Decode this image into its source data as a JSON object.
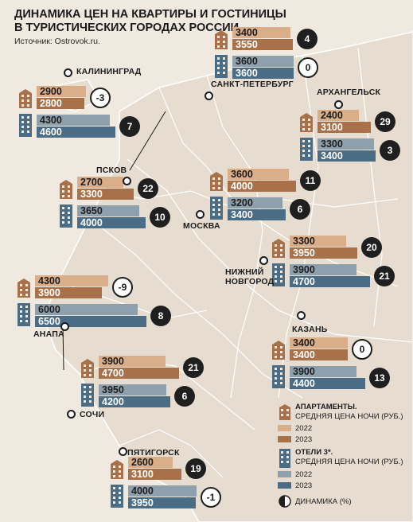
{
  "title_line1": "ДИНАМИКА ЦЕН НА КВАРТИРЫ И ГОСТИНИЦЫ",
  "title_line2": "В ТУРИСТИЧЕСКИХ ГОРОДАХ РОССИИ",
  "source": "Источник: Ostrovok.ru.",
  "colors": {
    "apt_2022": "#d9ae88",
    "apt_2023": "#a8714a",
    "hotel_2022": "#8fa0ad",
    "hotel_2023": "#4a6d85",
    "map_bg": "#efe9df",
    "land": "#e6dccf",
    "border": "#ffffff"
  },
  "chart_data": {
    "type": "bar",
    "cities": [
      {
        "name": "САНКТ-ПЕТЕРБУРГ",
        "apt": [
          3400,
          3550
        ],
        "apt_change": "4",
        "hotel": [
          3600,
          3600
        ],
        "hotel_change": "0"
      },
      {
        "name": "КАЛИНИНГРАД",
        "apt": [
          2900,
          2800
        ],
        "apt_change": "-3",
        "hotel": [
          4300,
          4600
        ],
        "hotel_change": "7"
      },
      {
        "name": "АРХАНГЕЛЬСК",
        "apt": [
          2400,
          3100
        ],
        "apt_change": "29",
        "hotel": [
          3300,
          3400
        ],
        "hotel_change": "3"
      },
      {
        "name": "ПСКОВ",
        "apt": [
          2700,
          3300
        ],
        "apt_change": "22",
        "hotel": [
          3650,
          4000
        ],
        "hotel_change": "10"
      },
      {
        "name": "МОСКВА",
        "apt": [
          3600,
          4000
        ],
        "apt_change": "11",
        "hotel": [
          3200,
          3400
        ],
        "hotel_change": "6"
      },
      {
        "name_line1": "НИЖНИЙ",
        "name_line2": "НОВГОРОД",
        "apt": [
          3300,
          3950
        ],
        "apt_change": "20",
        "hotel": [
          3900,
          4700
        ],
        "hotel_change": "21"
      },
      {
        "name": "АНАПА",
        "apt": [
          4300,
          3900
        ],
        "apt_change": "-9",
        "hotel": [
          6000,
          6500
        ],
        "hotel_change": "8"
      },
      {
        "name": "КАЗАНЬ",
        "apt": [
          3400,
          3400
        ],
        "apt_change": "0",
        "hotel": [
          3900,
          4400
        ],
        "hotel_change": "13"
      },
      {
        "name": "СОЧИ",
        "apt": [
          3900,
          4700
        ],
        "apt_change": "21",
        "hotel": [
          3950,
          4200
        ],
        "hotel_change": "6"
      },
      {
        "name": "ПЯТИГОРСК",
        "apt": [
          2600,
          3100
        ],
        "apt_change": "19",
        "hotel": [
          4000,
          3950
        ],
        "hotel_change": "-1"
      }
    ],
    "legend": {
      "apt_title": "АПАРТАМЕНТЫ.",
      "apt_sub": "СРЕДНЯЯ ЦЕНА НОЧИ (РУБ.)",
      "hotel_title": "ОТЕЛИ 3*.",
      "hotel_sub": "СРЕДНЯЯ ЦЕНА НОЧИ (РУБ.)",
      "year1": "2022",
      "year2": "2023",
      "change_label": "ДИНАМИКА (%)"
    }
  }
}
